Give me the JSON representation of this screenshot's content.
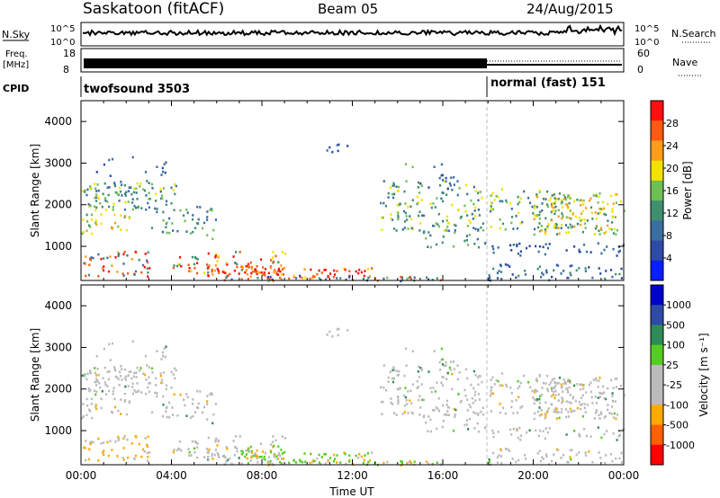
{
  "header": {
    "station": "Saskatoon (fitACF)",
    "beam": "Beam 05",
    "date": "24/Aug/2015"
  },
  "panels": {
    "nsky_label": "N.Sky",
    "nsearch_label": "N.Search",
    "noise_ticks": [
      "10^5",
      "10^0"
    ],
    "freq_label": "Freq.",
    "freq_unit": "[MHz]",
    "freq_ticks": [
      "18",
      "8"
    ],
    "nave_label": "Nave",
    "nave_ticks": [
      "60",
      "0"
    ],
    "cpid_label": "CPID",
    "cpid_entries": [
      "twofsound 3503",
      "normal (fast) 151"
    ]
  },
  "colors": {
    "power": [
      "#0a1eff",
      "#2e4aa6",
      "#3b6ea1",
      "#3f8f6f",
      "#6fbf55",
      "#f2e200",
      "#ff9c1a",
      "#ff5a10",
      "#ff1010"
    ],
    "velocity": [
      "#ff0000",
      "#ff6000",
      "#ffaa00",
      "#bbbbbb",
      "#bbbbbb",
      "#55cc22",
      "#2e8b57",
      "#2e4aa6",
      "#0000cc"
    ]
  },
  "chart_data": [
    {
      "type": "heatmap",
      "name": "power",
      "xlabel": "",
      "ylabel": "Slant Range [km]",
      "colorbar_label": "Power [dB]",
      "colorbar_ticks": [
        "28",
        "24",
        "20",
        "16",
        "12",
        "8",
        "4"
      ],
      "y_ticks": [
        "4000",
        "3000",
        "2000",
        "1000"
      ],
      "xlim": [
        0,
        24
      ],
      "ylim": [
        180,
        4500
      ],
      "grid": false
    },
    {
      "type": "heatmap",
      "name": "velocity",
      "xlabel": "Time UT",
      "ylabel": "Slant Range [km]",
      "colorbar_label": "Velocity [m s⁻¹]",
      "colorbar_ticks": [
        "1000",
        "500",
        "100",
        "25",
        "-25",
        "-100",
        "-500",
        "-1000"
      ],
      "y_ticks": [
        "4000",
        "3000",
        "2000",
        "1000"
      ],
      "x_ticks": [
        "00:00",
        "04:00",
        "08:00",
        "12:00",
        "16:00",
        "20:00",
        "00:00"
      ],
      "xlim": [
        0,
        24
      ],
      "ylim": [
        180,
        4500
      ],
      "grid": false
    }
  ]
}
